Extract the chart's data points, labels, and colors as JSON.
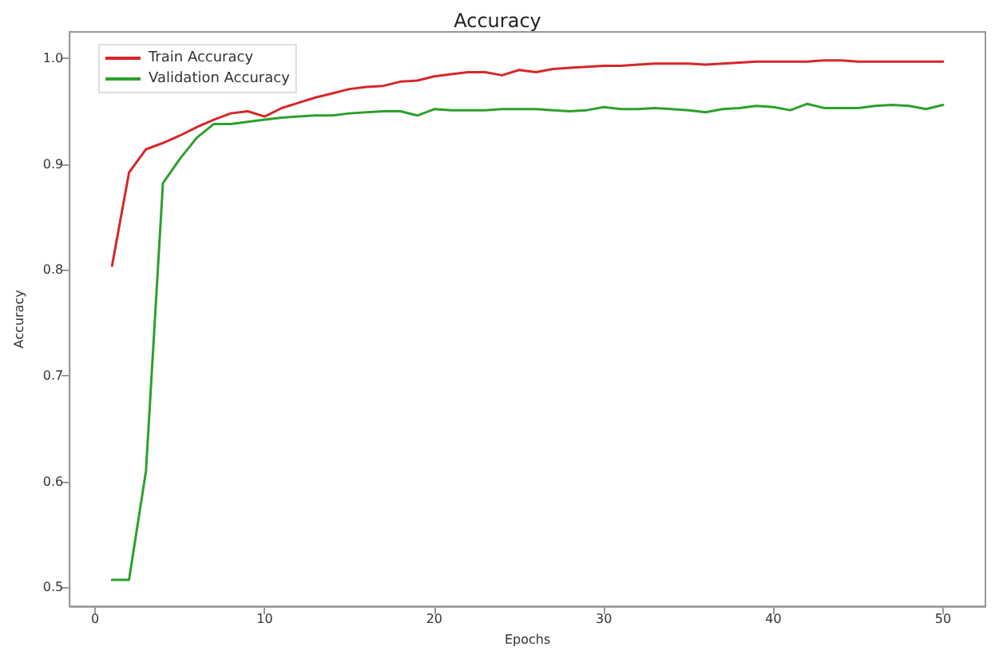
{
  "chart_data": {
    "type": "line",
    "title": "Accuracy",
    "xlabel": "Epochs",
    "ylabel": "Accuracy",
    "x": [
      1,
      2,
      3,
      4,
      5,
      6,
      7,
      8,
      9,
      10,
      11,
      12,
      13,
      14,
      15,
      16,
      17,
      18,
      19,
      20,
      21,
      22,
      23,
      24,
      25,
      26,
      27,
      28,
      29,
      30,
      31,
      32,
      33,
      34,
      35,
      36,
      37,
      38,
      39,
      40,
      41,
      42,
      43,
      44,
      45,
      46,
      47,
      48,
      49,
      50
    ],
    "series": [
      {
        "name": "Train Accuracy",
        "color": "#d62728",
        "values": [
          0.804,
          0.892,
          0.914,
          0.92,
          0.927,
          0.935,
          0.942,
          0.948,
          0.95,
          0.945,
          0.953,
          0.958,
          0.963,
          0.967,
          0.971,
          0.973,
          0.974,
          0.978,
          0.979,
          0.983,
          0.985,
          0.987,
          0.987,
          0.984,
          0.989,
          0.987,
          0.99,
          0.991,
          0.992,
          0.993,
          0.993,
          0.994,
          0.995,
          0.995,
          0.995,
          0.994,
          0.995,
          0.996,
          0.997,
          0.997,
          0.997,
          0.997,
          0.998,
          0.998,
          0.997,
          0.997,
          0.997,
          0.997,
          0.997,
          0.997
        ]
      },
      {
        "name": "Validation Accuracy",
        "color": "#2ca02c",
        "values": [
          0.507,
          0.507,
          0.61,
          0.882,
          0.905,
          0.925,
          0.938,
          0.938,
          0.94,
          0.942,
          0.944,
          0.945,
          0.946,
          0.946,
          0.948,
          0.949,
          0.95,
          0.95,
          0.946,
          0.952,
          0.951,
          0.951,
          0.951,
          0.952,
          0.952,
          0.952,
          0.951,
          0.95,
          0.951,
          0.954,
          0.952,
          0.952,
          0.953,
          0.952,
          0.951,
          0.949,
          0.952,
          0.953,
          0.955,
          0.954,
          0.951,
          0.957,
          0.953,
          0.953,
          0.953,
          0.955,
          0.956,
          0.955,
          0.952,
          0.956
        ]
      }
    ],
    "xlim": [
      -1.5,
      52.5
    ],
    "xticks": [
      0,
      10,
      20,
      30,
      40,
      50
    ],
    "ylim": [
      0.482,
      1.025
    ],
    "yticks": [
      0.5,
      0.6,
      0.7,
      0.8,
      0.9,
      {
        "value": 1,
        "label": "1.0"
      }
    ],
    "grid": false,
    "legend": "top left",
    "marker": "none",
    "line_style": "solid"
  }
}
